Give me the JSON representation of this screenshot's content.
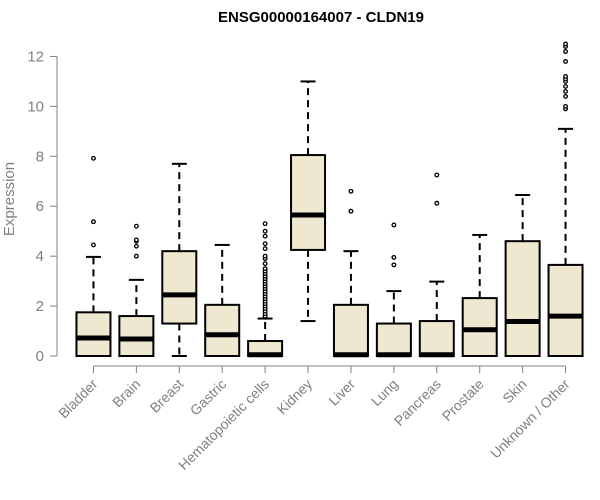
{
  "chart_data": {
    "type": "box",
    "title": "ENSG00000164007 - CLDN19",
    "xlabel": "",
    "ylabel": "Expression",
    "ylim": [
      0,
      12.5
    ],
    "yticks": [
      0,
      2,
      4,
      6,
      8,
      10,
      12
    ],
    "grid": false,
    "colors": {
      "box_fill": "#efe8d0",
      "stroke": "#000000",
      "axis": "#808080"
    },
    "categories": [
      "Bladder",
      "Brain",
      "Breast",
      "Gastric",
      "Hematopoietic cells",
      "Kidney",
      "Liver",
      "Lung",
      "Pancreas",
      "Prostate",
      "Skin",
      "Unknown / Other"
    ],
    "boxes": [
      {
        "category": "Bladder",
        "whisker_low": 0,
        "q1": 0,
        "median": 0.72,
        "q3": 1.75,
        "whisker_high": 3.97,
        "outliers": [
          4.45,
          5.38,
          7.92
        ]
      },
      {
        "category": "Brain",
        "whisker_low": 0,
        "q1": 0,
        "median": 0.68,
        "q3": 1.6,
        "whisker_high": 3.05,
        "outliers": [
          4.0,
          4.4,
          4.6,
          4.65,
          5.2
        ]
      },
      {
        "category": "Breast",
        "whisker_low": 0,
        "q1": 1.3,
        "median": 2.45,
        "q3": 4.2,
        "whisker_high": 7.7,
        "outliers": []
      },
      {
        "category": "Gastric",
        "whisker_low": 0,
        "q1": 0,
        "median": 0.85,
        "q3": 2.05,
        "whisker_high": 4.45,
        "outliers": []
      },
      {
        "category": "Hematopoietic cells",
        "whisker_low": 0,
        "q1": 0,
        "median": 0.05,
        "q3": 0.6,
        "whisker_high": 1.5,
        "outliers": [
          1.55,
          1.6,
          1.7,
          1.8,
          1.9,
          2.0,
          2.1,
          2.2,
          2.3,
          2.4,
          2.5,
          2.6,
          2.7,
          2.8,
          2.9,
          3.0,
          3.1,
          3.2,
          3.3,
          3.4,
          3.5,
          3.7,
          3.9,
          4.0,
          4.3,
          4.5,
          4.8,
          5.0,
          5.3
        ]
      },
      {
        "category": "Kidney",
        "whisker_low": 1.4,
        "q1": 4.25,
        "median": 5.65,
        "q3": 8.05,
        "whisker_high": 11.0,
        "outliers": []
      },
      {
        "category": "Liver",
        "whisker_low": 0,
        "q1": 0,
        "median": 0.05,
        "q3": 2.05,
        "whisker_high": 4.2,
        "outliers": [
          5.8,
          6.6
        ]
      },
      {
        "category": "Lung",
        "whisker_low": 0,
        "q1": 0,
        "median": 0.05,
        "q3": 1.3,
        "whisker_high": 2.6,
        "outliers": [
          3.65,
          3.95,
          5.25
        ]
      },
      {
        "category": "Pancreas",
        "whisker_low": 0,
        "q1": 0,
        "median": 0.05,
        "q3": 1.4,
        "whisker_high": 2.98,
        "outliers": [
          6.12,
          7.25
        ]
      },
      {
        "category": "Prostate",
        "whisker_low": 0,
        "q1": 0,
        "median": 1.05,
        "q3": 2.32,
        "whisker_high": 4.85,
        "outliers": []
      },
      {
        "category": "Skin",
        "whisker_low": 0,
        "q1": 0,
        "median": 1.38,
        "q3": 4.6,
        "whisker_high": 6.45,
        "outliers": []
      },
      {
        "category": "Unknown / Other",
        "whisker_low": 0,
        "q1": 0,
        "median": 1.6,
        "q3": 3.65,
        "whisker_high": 9.1,
        "outliers": [
          9.9,
          10.0,
          10.4,
          10.6,
          10.8,
          11.0,
          11.1,
          11.2,
          11.8,
          12.2,
          12.4,
          12.5
        ]
      }
    ]
  }
}
